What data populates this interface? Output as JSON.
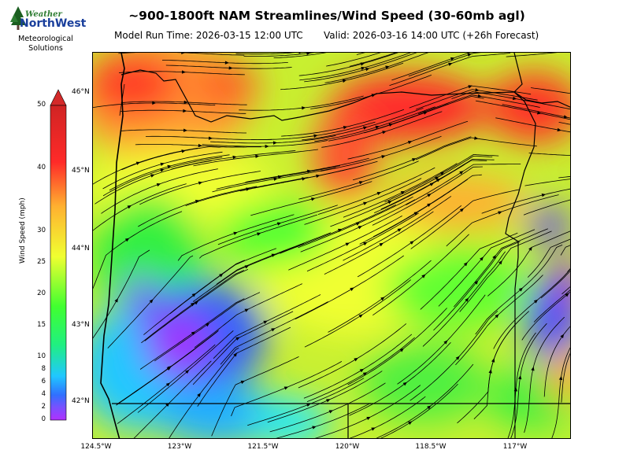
{
  "header": {
    "title": "~900-1800ft NAM Streamlines/Wind Speed (30-60mb agl)",
    "run_time": "Model Run Time: 2026-03-15 12:00 UTC",
    "valid_time": "Valid: 2026-03-16 14:00 UTC  (+26h Forecast)"
  },
  "logo": {
    "word1": "Weather",
    "word2": "NorthWest",
    "subtitle_line1": "Meteorological",
    "subtitle_line2": "Solutions",
    "icon": "pine-trees-icon"
  },
  "map": {
    "region": "Oregon",
    "lat_labels": [
      "46°N",
      "45°N",
      "44°N",
      "43°N",
      "42°N"
    ],
    "lon_labels": [
      "124.5°W",
      "123°W",
      "121.5°W",
      "120°W",
      "118.5°W",
      "117°W"
    ]
  },
  "colorbar": {
    "title": "Wind Speed (mph)",
    "ticks": [
      "0",
      "2",
      "4",
      "6",
      "8",
      "10",
      "15",
      "20",
      "25",
      "30",
      "40",
      "50"
    ],
    "colors": [
      "#b030ff",
      "#3060ff",
      "#20d0ff",
      "#20ff40",
      "#f0ff30",
      "#ffa030",
      "#ff2828",
      "#d42424"
    ],
    "extend": "max"
  },
  "colors": {
    "calm": "#b030ff",
    "light": "#3070ff",
    "moderate": "#30f040",
    "fresh": "#e8ff30",
    "strong": "#ff9a30",
    "very_strong": "#ff2a2a"
  }
}
